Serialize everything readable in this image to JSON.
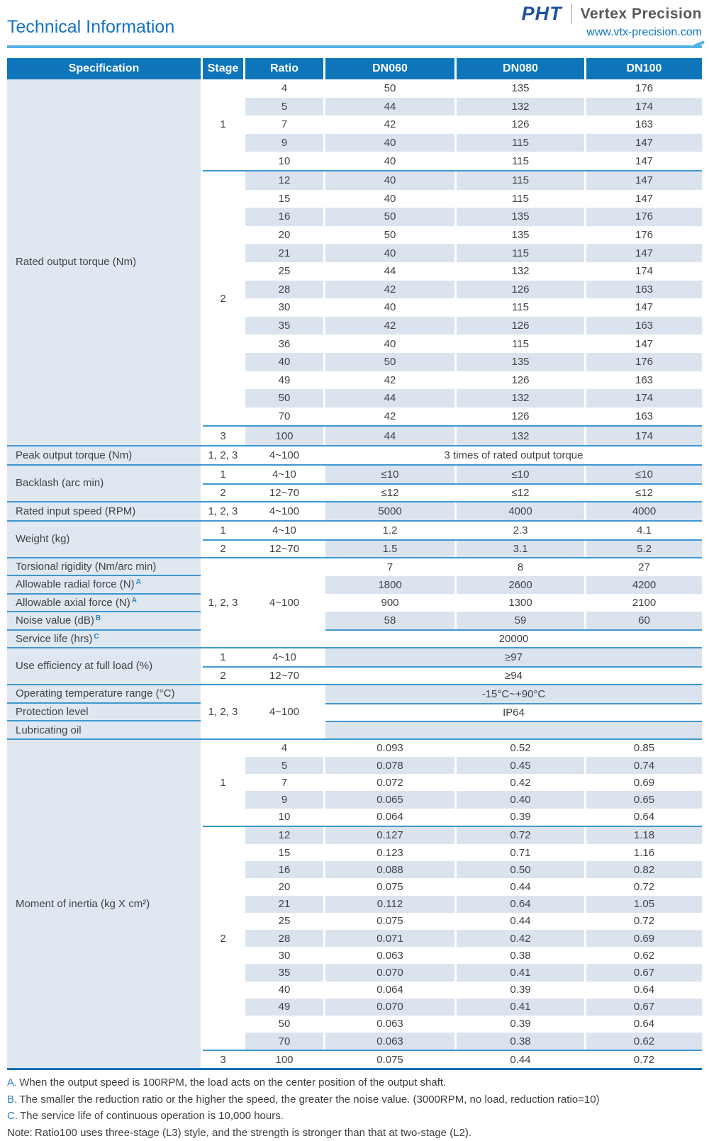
{
  "header": {
    "title": "Technical Information",
    "logo_text": "PHT",
    "brand_name": "Vertex Precision",
    "website": "www.vtx-precision.com"
  },
  "colors": {
    "header_blue": "#0e75bb",
    "row_stripe": "#dbe4ee",
    "spec_column_bg": "#dfe7f1",
    "divider_line_blue": "#3f97d2",
    "bottom_border_blue": "#1470b5",
    "title_blue": "#1273c4",
    "underline_blue": "#55b2e6",
    "logo_blue": "#1d4fa1",
    "brand_gray": "#56585a",
    "footnote_letter_blue": "#2d80c4"
  },
  "table": {
    "columns": [
      "Specification",
      "Stage",
      "Ratio",
      "DN060",
      "DN080",
      "DN100"
    ],
    "sections": [
      {
        "type": "grid",
        "label": "Rated output torque (Nm)",
        "stages": [
          {
            "stage": "1",
            "rows": [
              [
                "4",
                "50",
                "135",
                "176"
              ],
              [
                "5",
                "44",
                "132",
                "174"
              ],
              [
                "7",
                "42",
                "126",
                "163"
              ],
              [
                "9",
                "40",
                "115",
                "147"
              ],
              [
                "10",
                "40",
                "115",
                "147"
              ]
            ]
          },
          {
            "stage": "2",
            "rows": [
              [
                "12",
                "40",
                "115",
                "147"
              ],
              [
                "15",
                "40",
                "115",
                "147"
              ],
              [
                "16",
                "50",
                "135",
                "176"
              ],
              [
                "20",
                "50",
                "135",
                "176"
              ],
              [
                "21",
                "40",
                "115",
                "147"
              ],
              [
                "25",
                "44",
                "132",
                "174"
              ],
              [
                "28",
                "42",
                "126",
                "163"
              ],
              [
                "30",
                "40",
                "115",
                "147"
              ],
              [
                "35",
                "42",
                "126",
                "163"
              ],
              [
                "36",
                "40",
                "115",
                "147"
              ],
              [
                "40",
                "50",
                "135",
                "176"
              ],
              [
                "49",
                "42",
                "126",
                "163"
              ],
              [
                "50",
                "44",
                "132",
                "174"
              ],
              [
                "70",
                "42",
                "126",
                "163"
              ]
            ]
          },
          {
            "stage": "3",
            "rows": [
              [
                "100",
                "44",
                "132",
                "174"
              ]
            ]
          }
        ]
      },
      {
        "type": "groups",
        "groups": [
          {
            "specs": [
              {
                "label": "Peak output torque (Nm)"
              }
            ],
            "merge": true,
            "stage": "1, 2, 3",
            "ratio": "4~100",
            "rows": [
              {
                "span": "3 times of rated output torque"
              }
            ]
          },
          {
            "specs": [
              {
                "label": "Backlash (arc min)"
              }
            ],
            "merge": false,
            "rows": [
              {
                "stage": "1",
                "ratio": "4~10",
                "cells": [
                  "≤10",
                  "≤10",
                  "≤10"
                ]
              },
              {
                "stage": "2",
                "ratio": "12~70",
                "cells": [
                  "≤12",
                  "≤12",
                  "≤12"
                ],
                "line": true
              }
            ]
          },
          {
            "specs": [
              {
                "label": "Rated input speed (RPM)"
              }
            ],
            "merge": true,
            "stage": "1, 2, 3",
            "ratio": "4~100",
            "rows": [
              {
                "cells": [
                  "5000",
                  "4000",
                  "4000"
                ]
              }
            ]
          },
          {
            "specs": [
              {
                "label": "Weight (kg)"
              }
            ],
            "merge": false,
            "rows": [
              {
                "stage": "1",
                "ratio": "4~10",
                "cells": [
                  "1.2",
                  "2.3",
                  "4.1"
                ]
              },
              {
                "stage": "2",
                "ratio": "12~70",
                "cells": [
                  "1.5",
                  "3.1",
                  "5.2"
                ],
                "line": true
              }
            ]
          },
          {
            "specs": [
              {
                "label": "Torsional rigidity (Nm/arc min)"
              },
              {
                "label": "Allowable radial force (N)",
                "sup": "A"
              },
              {
                "label": "Allowable axial force (N)",
                "sup": "A"
              },
              {
                "label": "Noise value (dB)",
                "sup": "B"
              },
              {
                "label": "Service life (hrs)",
                "sup": "C"
              }
            ],
            "merge": true,
            "stage": "1, 2, 3",
            "ratio": "4~100",
            "rows": [
              {
                "cells": [
                  "7",
                  "8",
                  "27"
                ]
              },
              {
                "cells": [
                  "1800",
                  "2600",
                  "4200"
                ]
              },
              {
                "cells": [
                  "900",
                  "1300",
                  "2100"
                ]
              },
              {
                "cells": [
                  "58",
                  "59",
                  "60"
                ]
              },
              {
                "span": "20000",
                "line": true
              }
            ]
          },
          {
            "specs": [
              {
                "label": "Use efficiency at full load (%)"
              }
            ],
            "merge": false,
            "rows": [
              {
                "stage": "1",
                "ratio": "4~10",
                "span": "≥97"
              },
              {
                "stage": "2",
                "ratio": "12~70",
                "span": "≥94",
                "line": true
              }
            ]
          },
          {
            "specs": [
              {
                "label": "Operating temperature range (°C)"
              },
              {
                "label": "Protection level"
              },
              {
                "label": "Lubricating oil"
              }
            ],
            "merge": true,
            "stage": "1, 2, 3",
            "ratio": "4~100",
            "rows": [
              {
                "span": "-15°C~+90°C"
              },
              {
                "span": "IP64",
                "line": true
              },
              {
                "span": "",
                "line": true
              }
            ]
          }
        ]
      },
      {
        "type": "grid",
        "label": "Moment of inertia (kg X cm²)",
        "stages": [
          {
            "stage": "1",
            "rows": [
              [
                "4",
                "0.093",
                "0.52",
                "0.85"
              ],
              [
                "5",
                "0.078",
                "0.45",
                "0.74"
              ],
              [
                "7",
                "0.072",
                "0.42",
                "0.69"
              ],
              [
                "9",
                "0.065",
                "0.40",
                "0.65"
              ],
              [
                "10",
                "0.064",
                "0.39",
                "0.64"
              ]
            ]
          },
          {
            "stage": "2",
            "rows": [
              [
                "12",
                "0.127",
                "0.72",
                "1.18"
              ],
              [
                "15",
                "0.123",
                "0.71",
                "1.16"
              ],
              [
                "16",
                "0.088",
                "0.50",
                "0.82"
              ],
              [
                "20",
                "0.075",
                "0.44",
                "0.72"
              ],
              [
                "21",
                "0.112",
                "0.64",
                "1.05"
              ],
              [
                "25",
                "0.075",
                "0.44",
                "0.72"
              ],
              [
                "28",
                "0.071",
                "0.42",
                "0.69"
              ],
              [
                "30",
                "0.063",
                "0.38",
                "0.62"
              ],
              [
                "35",
                "0.070",
                "0.41",
                "0.67"
              ],
              [
                "40",
                "0.064",
                "0.39",
                "0.64"
              ],
              [
                "49",
                "0.070",
                "0.41",
                "0.67"
              ],
              [
                "50",
                "0.063",
                "0.39",
                "0.64"
              ],
              [
                "70",
                "0.063",
                "0.38",
                "0.62"
              ]
            ]
          },
          {
            "stage": "3",
            "rows": [
              [
                "100",
                "0.075",
                "0.44",
                "0.72"
              ]
            ]
          }
        ]
      }
    ]
  },
  "footnotes": [
    {
      "prefix": "A.",
      "blue": true,
      "text": "When the output speed is 100RPM, the load acts on the center position of the output shaft."
    },
    {
      "prefix": "B.",
      "blue": true,
      "text": "The smaller the reduction ratio or the higher the speed, the greater the noise value. (3000RPM, no load, reduction ratio=10)"
    },
    {
      "prefix": "C.",
      "blue": true,
      "text": "The service life of continuous operation is 10,000 hours."
    },
    {
      "prefix": "Note:",
      "blue": false,
      "text": "Ratio100 uses three-stage (L3) style, and the strength is stronger than that at two-stage (L2)."
    }
  ]
}
